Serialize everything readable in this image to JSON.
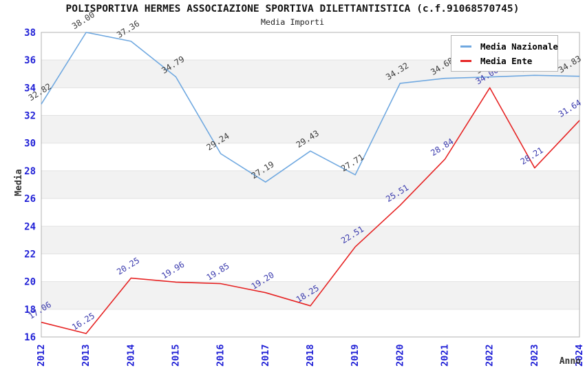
{
  "title": "POLISPORTIVA HERMES ASSOCIAZIONE SPORTIVA DILETTANTISTICA (c.f.91068570745)",
  "subtitle": "Media Importi",
  "legend": {
    "position": "top-right",
    "items": [
      {
        "label": "Media Nazionale",
        "color": "#6fa8e0"
      },
      {
        "label": "Media Ente",
        "color": "#e62222"
      }
    ]
  },
  "axis": {
    "x_title": "Anno",
    "y_title": "Media",
    "tick_label_color": "#1e1ed6",
    "y_ticks": [
      16,
      18,
      20,
      22,
      24,
      26,
      28,
      30,
      32,
      34,
      36,
      38
    ]
  },
  "chart_data": {
    "type": "line",
    "title": "Media Importi",
    "xlabel": "Anno",
    "ylabel": "Media",
    "x": [
      2012,
      2013,
      2014,
      2015,
      2016,
      2017,
      2018,
      2019,
      2020,
      2021,
      2022,
      2023,
      2024
    ],
    "series": [
      {
        "name": "Media Nazionale",
        "color": "#6fa8e0",
        "label_color": "#3c3c3c",
        "values": [
          32.82,
          38.0,
          37.36,
          34.79,
          29.24,
          27.19,
          29.43,
          27.71,
          34.32,
          34.68,
          34.78,
          34.9,
          34.83
        ]
      },
      {
        "name": "Media Ente",
        "color": "#e62222",
        "label_color": "#3a3aad",
        "values": [
          17.06,
          16.25,
          20.25,
          19.96,
          19.85,
          19.2,
          18.25,
          22.51,
          25.51,
          28.84,
          34.0,
          28.21,
          31.64
        ]
      }
    ],
    "labels_hidden_by_legend": [
      2022,
      2023
    ],
    "ylim": [
      16,
      38
    ],
    "ytick_step": 2,
    "grid": "alternating horizontal bands every 2 units",
    "band_color": "#f2f2f2",
    "gridline_color": "#e2e2e2",
    "legend_position": "top-right"
  }
}
